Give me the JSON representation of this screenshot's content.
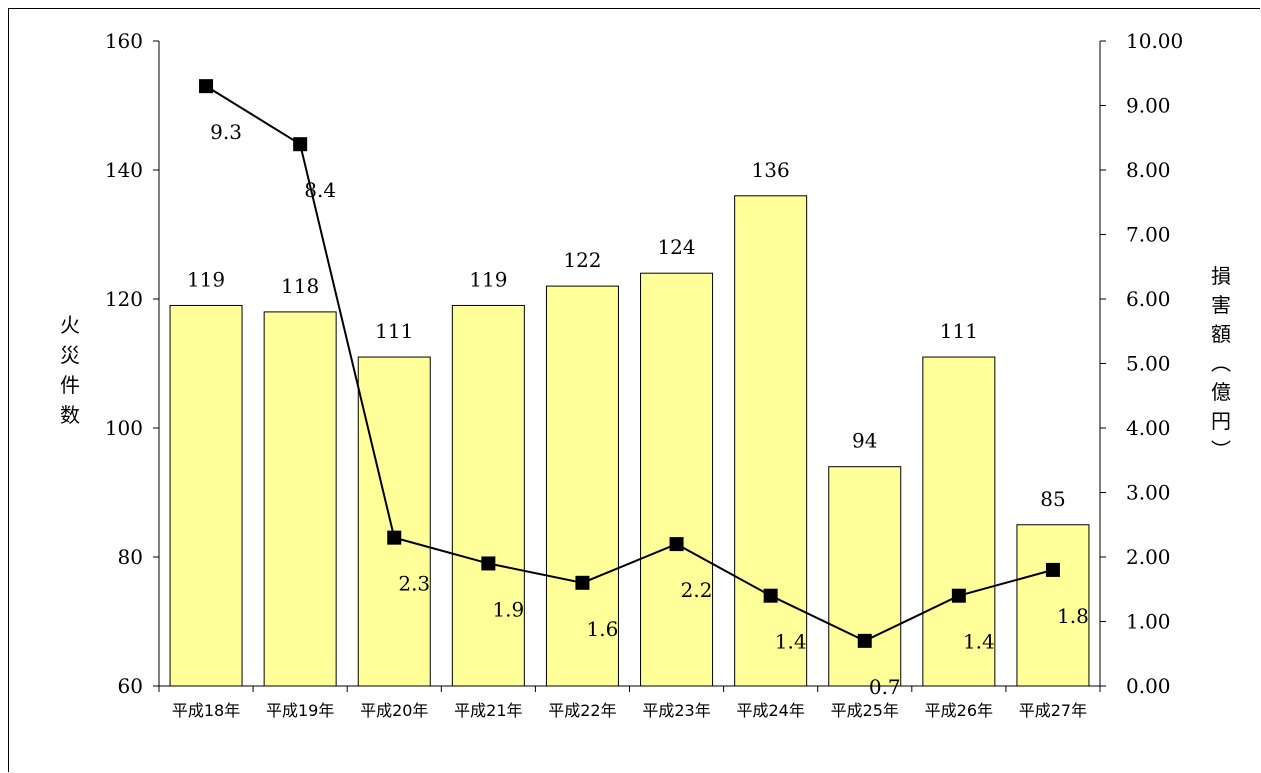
{
  "chart_data": {
    "type": "bar",
    "categories": [
      "平成18年",
      "平成19年",
      "平成20年",
      "平成21年",
      "平成22年",
      "平成23年",
      "平成24年",
      "平成25年",
      "平成26年",
      "平成27年"
    ],
    "series": [
      {
        "name": "",
        "type": "bar",
        "axis": "left",
        "values": [
          119,
          118,
          111,
          119,
          122,
          124,
          136,
          94,
          111,
          85
        ]
      },
      {
        "name": "",
        "type": "line",
        "axis": "right",
        "values": [
          9.3,
          8.4,
          2.3,
          1.9,
          1.6,
          2.2,
          1.4,
          0.7,
          1.4,
          1.8
        ]
      }
    ],
    "ylabel_left": "火災件数",
    "ylabel_right": "損害額(億円)",
    "ylim_left": [
      60,
      160
    ],
    "yticks_left": [
      "60",
      "80",
      "100",
      "120",
      "140",
      "160"
    ],
    "ylim_right": [
      0,
      10
    ],
    "yticks_right": [
      "0.00",
      "1.00",
      "2.00",
      "3.00",
      "4.00",
      "5.00",
      "6.00",
      "7.00",
      "8.00",
      "9.00",
      "10.00"
    ],
    "grid": false,
    "legend": "none",
    "colors": {
      "bar_fill": "#ffff99",
      "bar_stroke": "#000000",
      "line": "#000000",
      "marker": "#000000"
    }
  }
}
